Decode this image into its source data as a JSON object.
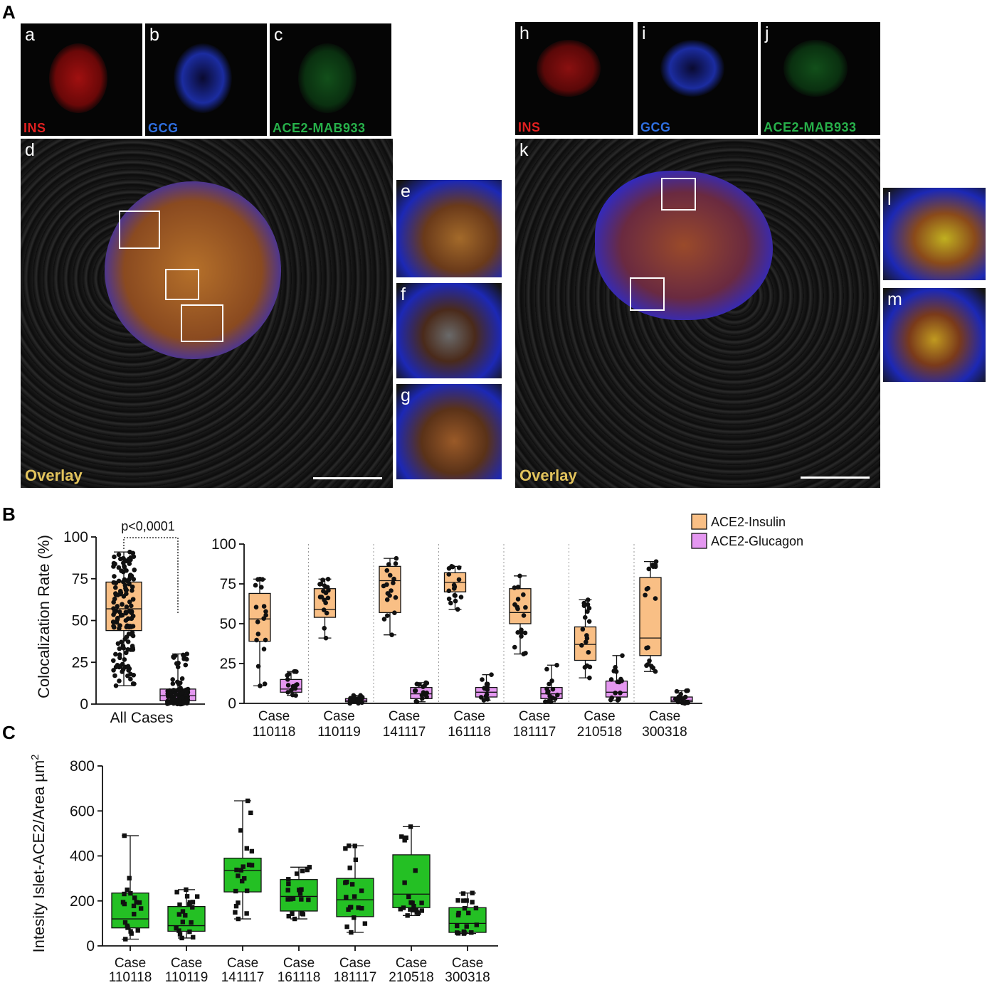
{
  "panel_a": {
    "letter": "A",
    "left_group": {
      "tiles": [
        {
          "sub": "a",
          "stain": "INS",
          "color": "#e02020"
        },
        {
          "sub": "b",
          "stain": "GCG",
          "color": "#2f6fe0"
        },
        {
          "sub": "c",
          "stain": "ACE2-MAB933",
          "color": "#27b04a"
        }
      ],
      "overlay_sub": "d",
      "overlay_label": "Overlay",
      "insets": [
        "e",
        "f",
        "g"
      ]
    },
    "right_group": {
      "tiles": [
        {
          "sub": "h",
          "stain": "INS",
          "color": "#e02020"
        },
        {
          "sub": "i",
          "stain": "GCG",
          "color": "#2f6fe0"
        },
        {
          "sub": "j",
          "stain": "ACE2-MAB933",
          "color": "#27b04a"
        }
      ],
      "overlay_sub": "k",
      "overlay_label": "Overlay",
      "insets": [
        "l",
        "m"
      ]
    }
  },
  "chart_data": [
    {
      "id": "B-left",
      "panel_letter": "B",
      "type": "box",
      "ylabel": "Colocalization Rate (%)",
      "ylim": [
        0,
        100
      ],
      "yticks": [
        0,
        25,
        50,
        75,
        100
      ],
      "category": "All Cases",
      "annotation": "p<0,0001",
      "series": [
        {
          "name": "ACE2-Insulin",
          "color": "#f9bf85",
          "min": 11,
          "q1": 44,
          "median": 57,
          "q3": 73,
          "max": 91
        },
        {
          "name": "ACE2-Glucagon",
          "color": "#e497f0",
          "min": 0,
          "q1": 2,
          "median": 5,
          "q3": 9,
          "max": 30
        }
      ]
    },
    {
      "id": "B-right",
      "type": "box",
      "ylim": [
        0,
        100
      ],
      "yticks": [
        0,
        25,
        50,
        75,
        100
      ],
      "legend": [
        "ACE2-Insulin",
        "ACE2-Glucagon"
      ],
      "legend_colors": [
        "#f9bf85",
        "#e497f0"
      ],
      "legend_position": "top-right",
      "categories": [
        {
          "label1": "Case",
          "label2": "110118",
          "ins": {
            "min": 11,
            "q1": 39,
            "median": 53,
            "q3": 69,
            "max": 78
          },
          "gcg": {
            "min": 5,
            "q1": 7,
            "median": 9,
            "q3": 15,
            "max": 20
          }
        },
        {
          "label1": "Case",
          "label2": "110119",
          "ins": {
            "min": 41,
            "q1": 54,
            "median": 59,
            "q3": 72,
            "max": 78
          },
          "gcg": {
            "min": 0,
            "q1": 1,
            "median": 2,
            "q3": 3,
            "max": 5
          }
        },
        {
          "label1": "Case",
          "label2": "141117",
          "ins": {
            "min": 43,
            "q1": 57,
            "median": 77,
            "q3": 86,
            "max": 91
          },
          "gcg": {
            "min": 1,
            "q1": 3,
            "median": 6,
            "q3": 10,
            "max": 13
          }
        },
        {
          "label1": "Case",
          "label2": "161118",
          "ins": {
            "min": 59,
            "q1": 70,
            "median": 76,
            "q3": 82,
            "max": 86
          },
          "gcg": {
            "min": 2,
            "q1": 4,
            "median": 7,
            "q3": 10,
            "max": 18
          }
        },
        {
          "label1": "Case",
          "label2": "181117",
          "ins": {
            "min": 31,
            "q1": 50,
            "median": 57,
            "q3": 72,
            "max": 80
          },
          "gcg": {
            "min": 1,
            "q1": 3,
            "median": 6,
            "q3": 10,
            "max": 24
          }
        },
        {
          "label1": "Case",
          "label2": "210518",
          "ins": {
            "min": 16,
            "q1": 27,
            "median": 37,
            "q3": 48,
            "max": 65
          },
          "gcg": {
            "min": 2,
            "q1": 4,
            "median": 7,
            "q3": 14,
            "max": 30
          }
        },
        {
          "label1": "Case",
          "label2": "300318",
          "ins": {
            "min": 20,
            "q1": 30,
            "median": 41,
            "q3": 79,
            "max": 89
          },
          "gcg": {
            "min": 0,
            "q1": 1,
            "median": 2,
            "q3": 4,
            "max": 8
          }
        }
      ]
    },
    {
      "id": "C",
      "panel_letter": "C",
      "type": "box",
      "ylabel": "Intesity Islet-ACE2/Area µm",
      "ylabel_sup": "2",
      "ylim": [
        0,
        800
      ],
      "yticks": [
        0,
        200,
        400,
        600,
        800
      ],
      "color": "#24c024",
      "categories": [
        {
          "label1": "Case",
          "label2": "110118",
          "min": 30,
          "q1": 80,
          "median": 120,
          "q3": 235,
          "max": 490
        },
        {
          "label1": "Case",
          "label2": "110119",
          "min": 35,
          "q1": 65,
          "median": 90,
          "q3": 175,
          "max": 250
        },
        {
          "label1": "Case",
          "label2": "141117",
          "min": 120,
          "q1": 240,
          "median": 335,
          "q3": 390,
          "max": 645
        },
        {
          "label1": "Case",
          "label2": "161118",
          "min": 120,
          "q1": 155,
          "median": 220,
          "q3": 295,
          "max": 350
        },
        {
          "label1": "Case",
          "label2": "181117",
          "min": 60,
          "q1": 130,
          "median": 205,
          "q3": 300,
          "max": 445
        },
        {
          "label1": "Case",
          "label2": "210518",
          "min": 135,
          "q1": 170,
          "median": 230,
          "q3": 405,
          "max": 530
        },
        {
          "label1": "Case",
          "label2": "300318",
          "min": 55,
          "q1": 60,
          "median": 100,
          "q3": 170,
          "max": 235
        }
      ]
    }
  ]
}
